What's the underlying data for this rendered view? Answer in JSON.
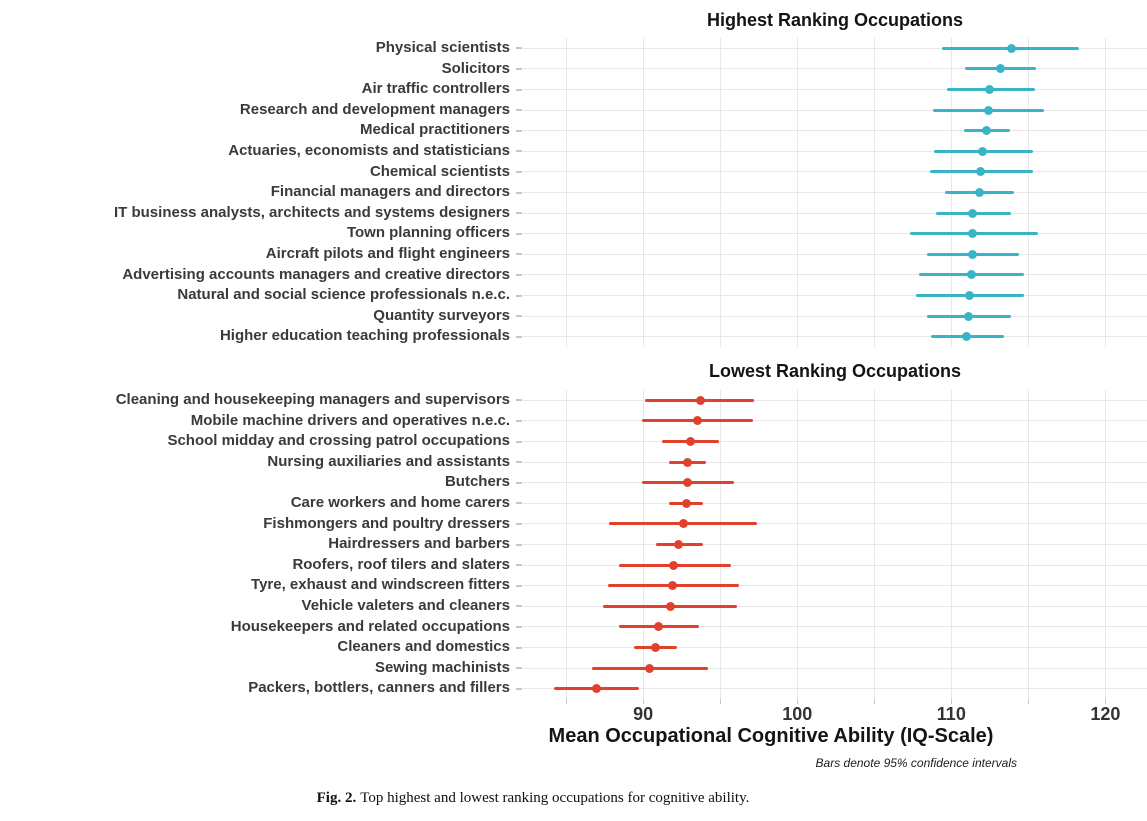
{
  "figure": {
    "caption_label": "Fig. 2.",
    "caption_text": "Top highest and lowest ranking occupations for cognitive ability."
  },
  "chart_data": {
    "type": "scatter",
    "subtype": "horizontal dot plot with 95% confidence interval bars, two stacked panels",
    "xlabel": "Mean Occupational Cognitive Ability (IQ-Scale)",
    "note": "Bars denote 95% confidence intervals",
    "xlim": [
      82.2,
      122.7
    ],
    "x_ticks": [
      90,
      100,
      110,
      120
    ],
    "x_grid": [
      85,
      90,
      95,
      100,
      105,
      110,
      115,
      120
    ],
    "grid": true,
    "legend": "none",
    "panels": [
      {
        "title": "Highest Ranking Occupations",
        "color": "#38b4c6",
        "rows": [
          {
            "label": "Physical scientists",
            "mean": 113.9,
            "ci": [
              109.4,
              118.3
            ]
          },
          {
            "label": "Solicitors",
            "mean": 113.2,
            "ci": [
              110.9,
              115.5
            ]
          },
          {
            "label": "Air traffic controllers",
            "mean": 112.5,
            "ci": [
              109.7,
              115.4
            ]
          },
          {
            "label": "Research and development managers",
            "mean": 112.4,
            "ci": [
              108.8,
              116.0
            ]
          },
          {
            "label": "Medical practitioners",
            "mean": 112.3,
            "ci": [
              110.8,
              113.8
            ]
          },
          {
            "label": "Actuaries, economists and statisticians",
            "mean": 112.0,
            "ci": [
              108.9,
              115.3
            ]
          },
          {
            "label": "Chemical scientists",
            "mean": 111.9,
            "ci": [
              108.6,
              115.3
            ]
          },
          {
            "label": "Financial managers and directors",
            "mean": 111.8,
            "ci": [
              109.6,
              114.1
            ]
          },
          {
            "label": "IT business analysts, architects and systems designers",
            "mean": 111.4,
            "ci": [
              109.0,
              113.9
            ]
          },
          {
            "label": "Town planning officers",
            "mean": 111.4,
            "ci": [
              107.3,
              115.6
            ]
          },
          {
            "label": "Aircraft pilots and flight engineers",
            "mean": 111.4,
            "ci": [
              108.4,
              114.4
            ]
          },
          {
            "label": "Advertising accounts managers and creative directors",
            "mean": 111.3,
            "ci": [
              107.9,
              114.7
            ]
          },
          {
            "label": "Natural and social science professionals n.e.c.",
            "mean": 111.2,
            "ci": [
              107.7,
              114.7
            ]
          },
          {
            "label": "Quantity surveyors",
            "mean": 111.1,
            "ci": [
              108.4,
              113.9
            ]
          },
          {
            "label": "Higher education teaching professionals",
            "mean": 111.0,
            "ci": [
              108.7,
              113.4
            ]
          }
        ]
      },
      {
        "title": "Lowest Ranking Occupations",
        "color": "#e0402c",
        "rows": [
          {
            "label": "Cleaning and housekeeping managers and supervisors",
            "mean": 93.7,
            "ci": [
              90.1,
              97.2
            ]
          },
          {
            "label": "Mobile machine drivers and operatives n.e.c.",
            "mean": 93.5,
            "ci": [
              89.9,
              97.1
            ]
          },
          {
            "label": "School midday and crossing patrol occupations",
            "mean": 93.1,
            "ci": [
              91.2,
              94.9
            ]
          },
          {
            "label": "Nursing auxiliaries and assistants",
            "mean": 92.9,
            "ci": [
              91.7,
              94.1
            ]
          },
          {
            "label": "Butchers",
            "mean": 92.9,
            "ci": [
              89.9,
              95.9
            ]
          },
          {
            "label": "Care workers and home carers",
            "mean": 92.8,
            "ci": [
              91.7,
              93.9
            ]
          },
          {
            "label": "Fishmongers and poultry dressers",
            "mean": 92.6,
            "ci": [
              87.8,
              97.4
            ]
          },
          {
            "label": "Hairdressers and barbers",
            "mean": 92.3,
            "ci": [
              90.8,
              93.9
            ]
          },
          {
            "label": "Roofers, roof tilers and slaters",
            "mean": 92.0,
            "ci": [
              88.4,
              95.7
            ]
          },
          {
            "label": "Tyre, exhaust and windscreen fitters",
            "mean": 91.9,
            "ci": [
              87.7,
              96.2
            ]
          },
          {
            "label": "Vehicle valeters and cleaners",
            "mean": 91.8,
            "ci": [
              87.4,
              96.1
            ]
          },
          {
            "label": "Housekeepers and related occupations",
            "mean": 91.0,
            "ci": [
              88.4,
              93.6
            ]
          },
          {
            "label": "Cleaners and domestics",
            "mean": 90.8,
            "ci": [
              89.4,
              92.2
            ]
          },
          {
            "label": "Sewing machinists",
            "mean": 90.4,
            "ci": [
              86.7,
              94.2
            ]
          },
          {
            "label": "Packers, bottlers, canners and fillers",
            "mean": 87.0,
            "ci": [
              84.2,
              89.7
            ]
          }
        ]
      }
    ]
  }
}
